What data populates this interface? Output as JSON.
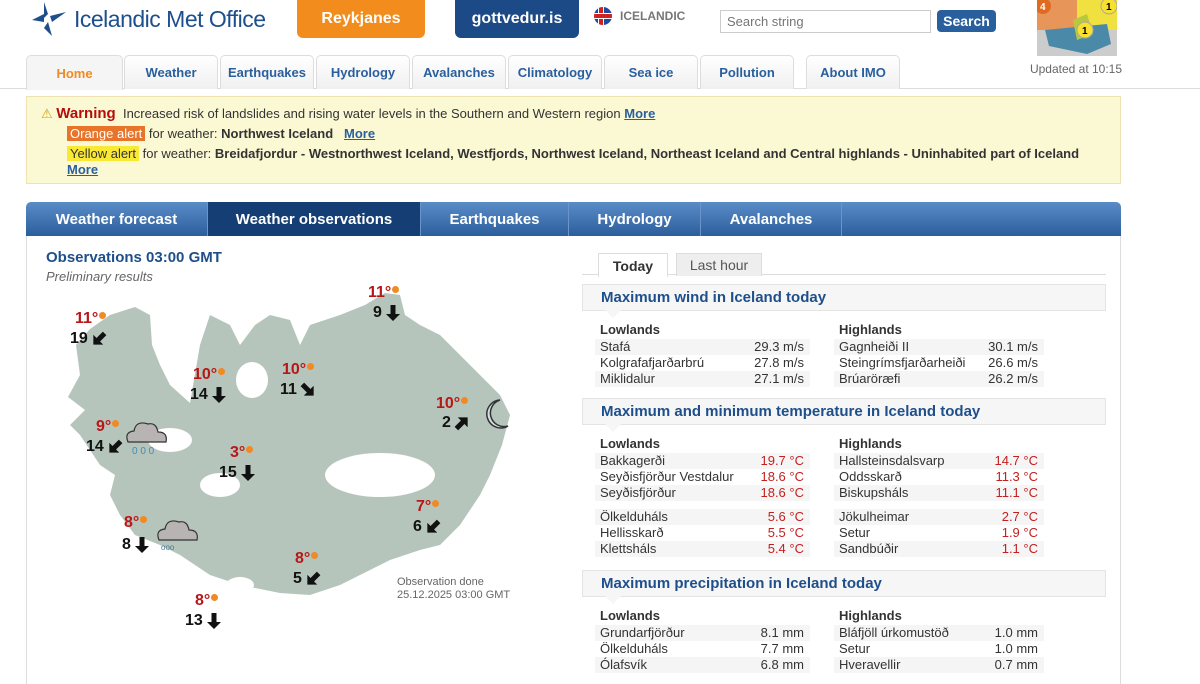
{
  "header": {
    "logo_text": "Icelandic Met Office",
    "reykjanes": "Reykjanes",
    "gottvedur": "gottvedur.is",
    "language": "ICELANDIC",
    "search_placeholder": "Search string",
    "search_button": "Search",
    "alert_map_counts": [
      "4",
      "1",
      "1"
    ],
    "updated": "Updated at 10:15"
  },
  "nav": [
    "Home",
    "Weather",
    "Earthquakes",
    "Hydrology",
    "Avalanches",
    "Climatology",
    "Sea ice",
    "Pollution",
    "About IMO"
  ],
  "warning": {
    "title": "Warning",
    "text": "Increased risk of landslides and rising water levels in the Southern and Western region",
    "more": "More",
    "orange": {
      "label": "Orange alert",
      "for": "for weather:",
      "region": "Northwest Iceland",
      "more": "More"
    },
    "yellow": {
      "label": "Yellow alert",
      "for": "for weather:",
      "region": "Breidafjordur - Westnorthwest Iceland, Westfjords, Northwest Iceland, Northeast Iceland and Central highlands - Uninhabited part of Iceland",
      "more": "More"
    }
  },
  "panel_tabs": [
    "Weather forecast",
    "Weather observations",
    "Earthquakes",
    "Hydrology",
    "Avalanches"
  ],
  "observations": {
    "title": "Observations 03:00 GMT",
    "subtitle": "Preliminary results",
    "done_label": "Observation done",
    "done_time": "25.12.2025 03:00 GMT",
    "stations": [
      {
        "temp": "11°",
        "wind": "19",
        "dir": "SW"
      },
      {
        "temp": "10°",
        "wind": "14",
        "dir": "S"
      },
      {
        "temp": "10°",
        "wind": "11",
        "dir": "SE"
      },
      {
        "temp": "11°",
        "wind": "9",
        "dir": "S"
      },
      {
        "temp": "10°",
        "wind": "2",
        "dir": "NE",
        "icon": "moon"
      },
      {
        "temp": "9°",
        "wind": "14",
        "dir": "SW",
        "icon": "cloud-rain"
      },
      {
        "temp": "3°",
        "wind": "15",
        "dir": "S"
      },
      {
        "temp": "8°",
        "wind": "8",
        "dir": "S",
        "icon": "cloud-snow"
      },
      {
        "temp": "7°",
        "wind": "6",
        "dir": "SW"
      },
      {
        "temp": "8°",
        "wind": "5",
        "dir": "SW"
      },
      {
        "temp": "8°",
        "wind": "13",
        "dir": "S"
      }
    ]
  },
  "right_tabs": [
    "Today",
    "Last hour"
  ],
  "sections": [
    {
      "title": "Maximum wind in Iceland today",
      "lowlands_label": "Lowlands",
      "highlands_label": "Highlands",
      "lowlands": [
        [
          "Stafá",
          "29.3 m/s"
        ],
        [
          "Kolgrafafjarðarbrú",
          "27.8 m/s"
        ],
        [
          "Miklidalur",
          "27.1 m/s"
        ]
      ],
      "highlands": [
        [
          "Gagnheiði II",
          "30.1 m/s"
        ],
        [
          "Steingrímsfjarðarheiði",
          "26.6 m/s"
        ],
        [
          "Brúaröræfi",
          "26.2 m/s"
        ]
      ]
    },
    {
      "title": "Maximum and minimum temperature in Iceland today",
      "lowlands_label": "Lowlands",
      "highlands_label": "Highlands",
      "lowlands": [
        [
          "Bakkagerði",
          "19.7 °C"
        ],
        [
          "Seyðisfjörður Vestdalur",
          "18.6 °C"
        ],
        [
          "Seyðisfjörður",
          "18.6 °C"
        ]
      ],
      "highlands": [
        [
          "Hallsteinsdalsvarp",
          "14.7 °C"
        ],
        [
          "Oddsskarð",
          "11.3 °C"
        ],
        [
          "Biskupsháls",
          "11.1 °C"
        ]
      ],
      "lowlands_min": [
        [
          "Ölkelduháls",
          "5.6 °C"
        ],
        [
          "Hellisskarð",
          "5.5 °C"
        ],
        [
          "Klettsháls",
          "5.4 °C"
        ]
      ],
      "highlands_min": [
        [
          "Jökulheimar",
          "2.7 °C"
        ],
        [
          "Setur",
          "1.9 °C"
        ],
        [
          "Sandbúðir",
          "1.1 °C"
        ]
      ]
    },
    {
      "title": "Maximum precipitation in Iceland today",
      "lowlands_label": "Lowlands",
      "highlands_label": "Highlands",
      "lowlands": [
        [
          "Grundarfjörður",
          "8.1 mm"
        ],
        [
          "Ölkelduháls",
          "7.7 mm"
        ],
        [
          "Ólafsvík",
          "6.8 mm"
        ]
      ],
      "highlands": [
        [
          "Bláfjöll úrkomustöð",
          "1.0 mm"
        ],
        [
          "Setur",
          "1.0 mm"
        ],
        [
          "Hveravellir",
          "0.7 mm"
        ]
      ]
    }
  ],
  "colors": {
    "brand_blue": "#1f4f8a",
    "orange": "#f28c1c",
    "navy": "#1c4a86",
    "warning_bg": "#fbf8d4",
    "temp_red": "#b81717"
  }
}
